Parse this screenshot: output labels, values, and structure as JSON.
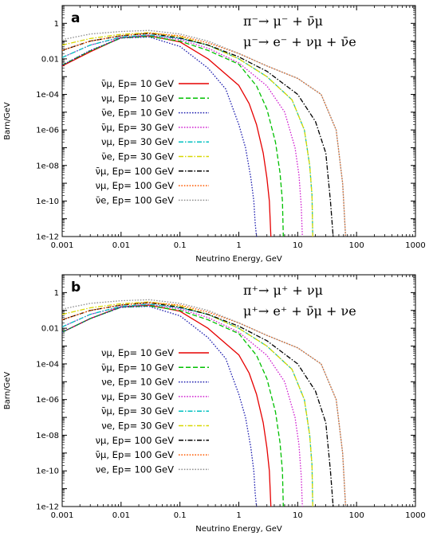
{
  "chart_data": [
    {
      "type": "line",
      "panel": "a",
      "reaction_lines": [
        "π⁻→ μ⁻ + ν̄μ",
        "μ⁻→ e⁻ + νμ + ν̄e"
      ],
      "xlabel": "Neutrino Energy, GeV",
      "ylabel": "Barn/GeV",
      "xscale": "log",
      "yscale": "log",
      "xlim": [
        0.001,
        1000
      ],
      "ylim": [
        1e-12,
        10
      ],
      "x_ticks": [
        "0.001",
        "0.01",
        "0.1",
        "1",
        "10",
        "100",
        "1000"
      ],
      "y_ticks": [
        "1e-12",
        "1e-10",
        "1e-08",
        "1e-06",
        "1e-04",
        "0.01",
        "1"
      ],
      "legend_position": "left",
      "series": [
        {
          "name": "ν̄μ, Ep= 10 GeV",
          "color": "#e60000",
          "dash": "solid",
          "x": [
            0.001,
            0.003,
            0.01,
            0.03,
            0.1,
            0.3,
            1,
            1.5,
            2,
            2.6,
            3.0,
            3.3,
            3.5
          ],
          "y": [
            0.004,
            0.025,
            0.16,
            0.2,
            0.09,
            0.01,
            0.00032,
            3e-05,
            2e-06,
            5e-08,
            2e-09,
            1e-10,
            1e-12
          ]
        },
        {
          "name": "νμ, Ep= 10 GeV",
          "color": "#00c000",
          "dash": "dashed",
          "x": [
            0.001,
            0.003,
            0.01,
            0.03,
            0.1,
            0.3,
            1,
            2,
            3,
            4.2,
            5.0,
            5.5,
            5.7
          ],
          "y": [
            0.0045,
            0.028,
            0.15,
            0.18,
            0.1,
            0.03,
            0.005,
            0.0003,
            1.5e-05,
            2e-07,
            4e-09,
            1e-10,
            1e-12
          ]
        },
        {
          "name": "ν̄e, Ep= 10 GeV",
          "color": "#2020b0",
          "dash": "dotted",
          "x": [
            0.001,
            0.003,
            0.01,
            0.03,
            0.1,
            0.3,
            0.6,
            1,
            1.3,
            1.6,
            1.8,
            1.9,
            2.0
          ],
          "y": [
            0.0045,
            0.03,
            0.15,
            0.17,
            0.05,
            0.003,
            0.0002,
            2e-06,
            1e-07,
            2e-09,
            1e-10,
            5e-12,
            1e-12
          ]
        },
        {
          "name": "ν̄μ, Ep= 30 GeV",
          "color": "#d020d0",
          "dash": "dotted",
          "x": [
            0.001,
            0.003,
            0.01,
            0.03,
            0.1,
            0.3,
            1,
            3,
            6,
            9,
            10.5,
            11.5,
            12
          ],
          "y": [
            0.012,
            0.06,
            0.16,
            0.22,
            0.12,
            0.04,
            0.006,
            0.0003,
            1e-05,
            1e-07,
            3e-09,
            5e-11,
            1e-12
          ]
        },
        {
          "name": "νμ, Ep= 30 GeV",
          "color": "#00c0c0",
          "dash": "dashdot",
          "x": [
            0.001,
            0.003,
            0.01,
            0.03,
            0.1,
            0.3,
            1,
            3,
            8,
            13,
            16,
            17.5,
            18
          ],
          "y": [
            0.012,
            0.06,
            0.17,
            0.22,
            0.14,
            0.06,
            0.01,
            0.001,
            5e-05,
            1e-06,
            1e-08,
            2e-10,
            1e-12
          ]
        },
        {
          "name": "ν̄e, Ep= 30 GeV",
          "color": "#d8d800",
          "dash": "dashdot",
          "x": [
            0.001,
            0.003,
            0.01,
            0.03,
            0.1,
            0.3,
            1,
            3,
            8,
            13,
            16,
            17.5,
            18
          ],
          "y": [
            0.06,
            0.14,
            0.24,
            0.3,
            0.18,
            0.06,
            0.01,
            0.001,
            5e-05,
            1e-06,
            1e-08,
            2e-10,
            1e-12
          ]
        },
        {
          "name": "ν̄μ, Ep= 100 GeV",
          "color": "#000000",
          "dash": "dashdot",
          "x": [
            0.001,
            0.003,
            0.01,
            0.03,
            0.1,
            0.3,
            1,
            3,
            10,
            20,
            30,
            36,
            40
          ],
          "y": [
            0.03,
            0.1,
            0.2,
            0.27,
            0.15,
            0.06,
            0.013,
            0.002,
            0.0001,
            3e-06,
            5e-08,
            1e-10,
            1e-12
          ]
        },
        {
          "name": "νμ, Ep= 100 GeV",
          "color": "#ff5a00",
          "dash": "dotted",
          "x": [
            0.001,
            0.003,
            0.01,
            0.03,
            0.1,
            0.3,
            1,
            3,
            10,
            25,
            45,
            58,
            65
          ],
          "y": [
            0.03,
            0.1,
            0.2,
            0.28,
            0.2,
            0.08,
            0.02,
            0.004,
            0.0008,
            0.0001,
            1e-06,
            1e-09,
            1e-12
          ]
        },
        {
          "name": "ν̄e, Ep= 100 GeV",
          "color": "#909090",
          "dash": "dotted",
          "x": [
            0.001,
            0.003,
            0.01,
            0.03,
            0.1,
            0.3,
            1,
            3,
            10,
            25,
            45,
            58,
            65
          ],
          "y": [
            0.12,
            0.25,
            0.35,
            0.4,
            0.25,
            0.1,
            0.02,
            0.004,
            0.0008,
            0.0001,
            1e-06,
            1e-09,
            1e-12
          ]
        }
      ]
    },
    {
      "type": "line",
      "panel": "b",
      "reaction_lines": [
        "π⁺→ μ⁺ + νμ",
        "μ⁺→ e⁺ + ν̄μ + νe"
      ],
      "xlabel": "Neutrino Energy, GeV",
      "ylabel": "Barn/GeV",
      "xscale": "log",
      "yscale": "log",
      "xlim": [
        0.001,
        1000
      ],
      "ylim": [
        1e-12,
        10
      ],
      "x_ticks": [
        "0.001",
        "0.01",
        "0.1",
        "1",
        "10",
        "100",
        "1000"
      ],
      "y_ticks": [
        "1e-12",
        "1e-10",
        "1e-08",
        "1e-06",
        "1e-04",
        "0.01",
        "1"
      ],
      "legend_position": "left",
      "series": [
        {
          "name": "νμ, Ep= 10 GeV",
          "color": "#e60000",
          "dash": "solid",
          "x": [
            0.001,
            0.003,
            0.01,
            0.03,
            0.1,
            0.3,
            1,
            1.5,
            2,
            2.6,
            3.0,
            3.3,
            3.5
          ],
          "y": [
            0.006,
            0.035,
            0.16,
            0.2,
            0.09,
            0.01,
            0.00032,
            3e-05,
            2e-06,
            5e-08,
            2e-09,
            1e-10,
            1e-12
          ]
        },
        {
          "name": "ν̄μ, Ep= 10 GeV",
          "color": "#00c000",
          "dash": "dashed",
          "x": [
            0.001,
            0.003,
            0.01,
            0.03,
            0.1,
            0.3,
            1,
            2,
            3,
            4.2,
            5.0,
            5.5,
            5.7
          ],
          "y": [
            0.006,
            0.035,
            0.15,
            0.18,
            0.1,
            0.03,
            0.005,
            0.0003,
            1.5e-05,
            2e-07,
            4e-09,
            1e-10,
            1e-12
          ]
        },
        {
          "name": "νe, Ep= 10 GeV",
          "color": "#2020b0",
          "dash": "dotted",
          "x": [
            0.001,
            0.003,
            0.01,
            0.03,
            0.1,
            0.3,
            0.6,
            1,
            1.3,
            1.6,
            1.8,
            1.9,
            2.0
          ],
          "y": [
            0.006,
            0.035,
            0.15,
            0.17,
            0.05,
            0.003,
            0.0002,
            2e-06,
            1e-07,
            2e-09,
            1e-10,
            5e-12,
            1e-12
          ]
        },
        {
          "name": "νμ, Ep= 30 GeV",
          "color": "#d020d0",
          "dash": "dotted",
          "x": [
            0.001,
            0.003,
            0.01,
            0.03,
            0.1,
            0.3,
            1,
            3,
            6,
            9,
            10.5,
            11.5,
            12
          ],
          "y": [
            0.012,
            0.06,
            0.16,
            0.22,
            0.12,
            0.04,
            0.006,
            0.0003,
            1e-05,
            1e-07,
            3e-09,
            5e-11,
            1e-12
          ]
        },
        {
          "name": "ν̄μ, Ep= 30 GeV",
          "color": "#00c0c0",
          "dash": "dashdot",
          "x": [
            0.001,
            0.003,
            0.01,
            0.03,
            0.1,
            0.3,
            1,
            3,
            8,
            13,
            16,
            17.5,
            18
          ],
          "y": [
            0.012,
            0.06,
            0.17,
            0.22,
            0.14,
            0.06,
            0.01,
            0.001,
            5e-05,
            1e-06,
            1e-08,
            2e-10,
            1e-12
          ]
        },
        {
          "name": "νe, Ep= 30 GeV",
          "color": "#d8d800",
          "dash": "dashdot",
          "x": [
            0.001,
            0.003,
            0.01,
            0.03,
            0.1,
            0.3,
            1,
            3,
            8,
            13,
            16,
            17.5,
            18
          ],
          "y": [
            0.06,
            0.14,
            0.24,
            0.3,
            0.18,
            0.06,
            0.01,
            0.001,
            5e-05,
            1e-06,
            1e-08,
            2e-10,
            1e-12
          ]
        },
        {
          "name": "νμ, Ep= 100 GeV",
          "color": "#000000",
          "dash": "dashdot",
          "x": [
            0.001,
            0.003,
            0.01,
            0.03,
            0.1,
            0.3,
            1,
            3,
            10,
            20,
            30,
            36,
            40
          ],
          "y": [
            0.03,
            0.1,
            0.2,
            0.27,
            0.15,
            0.06,
            0.013,
            0.002,
            0.0001,
            3e-06,
            5e-08,
            1e-10,
            1e-12
          ]
        },
        {
          "name": "ν̄μ, Ep= 100 GeV",
          "color": "#ff5a00",
          "dash": "dotted",
          "x": [
            0.001,
            0.003,
            0.01,
            0.03,
            0.1,
            0.3,
            1,
            3,
            10,
            25,
            45,
            58,
            65
          ],
          "y": [
            0.03,
            0.1,
            0.2,
            0.28,
            0.2,
            0.08,
            0.02,
            0.004,
            0.0008,
            0.0001,
            1e-06,
            1e-09,
            1e-12
          ]
        },
        {
          "name": "νe, Ep= 100 GeV",
          "color": "#909090",
          "dash": "dotted",
          "x": [
            0.001,
            0.003,
            0.01,
            0.03,
            0.1,
            0.3,
            1,
            3,
            10,
            25,
            45,
            58,
            65
          ],
          "y": [
            0.12,
            0.25,
            0.35,
            0.4,
            0.25,
            0.1,
            0.02,
            0.004,
            0.0008,
            0.0001,
            1e-06,
            1e-09,
            1e-12
          ]
        }
      ]
    }
  ]
}
